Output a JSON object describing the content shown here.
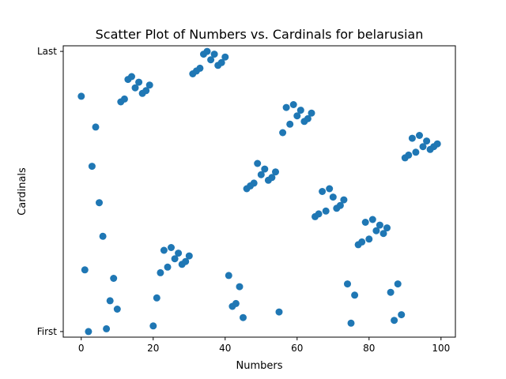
{
  "chart_data": {
    "type": "scatter",
    "title": "Scatter Plot of Numbers vs. Cardinals for belarusian",
    "xlabel": "Numbers",
    "ylabel": "Cardinals",
    "xlim": [
      -5,
      104
    ],
    "ylim": [
      -2,
      102
    ],
    "x_ticks": [
      0,
      20,
      40,
      60,
      80,
      100
    ],
    "y_ticks": [
      {
        "value": 0,
        "label": "First"
      },
      {
        "value": 100,
        "label": "Last"
      }
    ],
    "marker_color": "#1f77b4",
    "grid": false,
    "points": [
      [
        0,
        84
      ],
      [
        1,
        22
      ],
      [
        2,
        0
      ],
      [
        3,
        59
      ],
      [
        4,
        73
      ],
      [
        5,
        46
      ],
      [
        6,
        34
      ],
      [
        7,
        1
      ],
      [
        8,
        11
      ],
      [
        9,
        19
      ],
      [
        10,
        8
      ],
      [
        11,
        82
      ],
      [
        12,
        83
      ],
      [
        13,
        90
      ],
      [
        14,
        91
      ],
      [
        15,
        87
      ],
      [
        16,
        89
      ],
      [
        17,
        85
      ],
      [
        18,
        86
      ],
      [
        19,
        88
      ],
      [
        20,
        2
      ],
      [
        21,
        12
      ],
      [
        22,
        21
      ],
      [
        23,
        29
      ],
      [
        24,
        23
      ],
      [
        25,
        30
      ],
      [
        26,
        26
      ],
      [
        27,
        28
      ],
      [
        28,
        24
      ],
      [
        29,
        25
      ],
      [
        30,
        27
      ],
      [
        31,
        92
      ],
      [
        32,
        93
      ],
      [
        33,
        94
      ],
      [
        34,
        99
      ],
      [
        35,
        100
      ],
      [
        36,
        97
      ],
      [
        37,
        99
      ],
      [
        38,
        95
      ],
      [
        39,
        96
      ],
      [
        40,
        98
      ],
      [
        41,
        20
      ],
      [
        42,
        9
      ],
      [
        43,
        10
      ],
      [
        44,
        16
      ],
      [
        45,
        5
      ],
      [
        46,
        51
      ],
      [
        47,
        52
      ],
      [
        48,
        53
      ],
      [
        49,
        60
      ],
      [
        50,
        56
      ],
      [
        51,
        58
      ],
      [
        52,
        54
      ],
      [
        53,
        55
      ],
      [
        54,
        57
      ],
      [
        55,
        7
      ],
      [
        56,
        71
      ],
      [
        57,
        80
      ],
      [
        58,
        74
      ],
      [
        59,
        81
      ],
      [
        60,
        77
      ],
      [
        61,
        79
      ],
      [
        62,
        75
      ],
      [
        63,
        76
      ],
      [
        64,
        78
      ],
      [
        65,
        41
      ],
      [
        66,
        42
      ],
      [
        67,
        50
      ],
      [
        68,
        43
      ],
      [
        69,
        51
      ],
      [
        70,
        48
      ],
      [
        71,
        44
      ],
      [
        72,
        45
      ],
      [
        73,
        47
      ],
      [
        74,
        17
      ],
      [
        75,
        3
      ],
      [
        76,
        13
      ],
      [
        77,
        31
      ],
      [
        78,
        32
      ],
      [
        79,
        39
      ],
      [
        80,
        33
      ],
      [
        81,
        40
      ],
      [
        82,
        36
      ],
      [
        83,
        38
      ],
      [
        84,
        35
      ],
      [
        85,
        37
      ],
      [
        86,
        14
      ],
      [
        87,
        4
      ],
      [
        88,
        17
      ],
      [
        89,
        6
      ],
      [
        90,
        62
      ],
      [
        91,
        63
      ],
      [
        92,
        69
      ],
      [
        93,
        64
      ],
      [
        94,
        70
      ],
      [
        95,
        66
      ],
      [
        96,
        68
      ],
      [
        97,
        65
      ],
      [
        98,
        66
      ],
      [
        99,
        67
      ]
    ]
  }
}
